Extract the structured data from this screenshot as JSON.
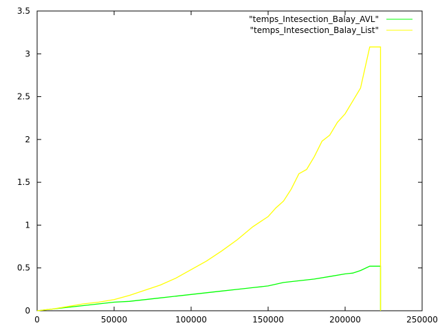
{
  "chart_data": {
    "type": "line",
    "title": "",
    "xlabel": "",
    "ylabel": "",
    "xlim": [
      0,
      250000
    ],
    "ylim": [
      0,
      3.5
    ],
    "x_ticks": [
      0,
      50000,
      100000,
      150000,
      200000,
      250000
    ],
    "x_tick_labels": [
      "0",
      "50000",
      "100000",
      "150000",
      "200000",
      "250000"
    ],
    "y_ticks": [
      0,
      0.5,
      1,
      1.5,
      2,
      2.5,
      3,
      3.5
    ],
    "y_tick_labels": [
      "0",
      "0.5",
      "1",
      "1.5",
      "2",
      "2.5",
      "3",
      "3.5"
    ],
    "grid": false,
    "legend_position": "top-right",
    "series": [
      {
        "name": "\"temps_Intesection_Balay_AVL\"",
        "color": "#00ff00",
        "x": [
          0,
          10000,
          20000,
          30000,
          40000,
          50000,
          60000,
          70000,
          80000,
          90000,
          100000,
          110000,
          120000,
          130000,
          140000,
          150000,
          160000,
          170000,
          180000,
          190000,
          200000,
          205000,
          210000,
          216000,
          223000,
          223000
        ],
        "y": [
          0,
          0.02,
          0.04,
          0.06,
          0.08,
          0.1,
          0.11,
          0.13,
          0.15,
          0.17,
          0.19,
          0.21,
          0.23,
          0.25,
          0.27,
          0.29,
          0.33,
          0.35,
          0.37,
          0.4,
          0.43,
          0.44,
          0.47,
          0.52,
          0.52,
          0
        ]
      },
      {
        "name": "\"temps_Intesection_Balay_List\"",
        "color": "#ffff00",
        "x": [
          0,
          10000,
          20000,
          30000,
          40000,
          50000,
          60000,
          70000,
          80000,
          90000,
          100000,
          110000,
          120000,
          130000,
          140000,
          150000,
          155000,
          160000,
          165000,
          170000,
          175000,
          180000,
          185000,
          190000,
          195000,
          200000,
          205000,
          210000,
          216000,
          223000,
          223000
        ],
        "y": [
          0,
          0.02,
          0.05,
          0.08,
          0.1,
          0.13,
          0.18,
          0.24,
          0.3,
          0.38,
          0.48,
          0.58,
          0.7,
          0.83,
          0.98,
          1.1,
          1.2,
          1.28,
          1.42,
          1.6,
          1.65,
          1.8,
          1.98,
          2.05,
          2.2,
          2.3,
          2.45,
          2.6,
          3.08,
          3.08,
          0
        ]
      }
    ]
  }
}
